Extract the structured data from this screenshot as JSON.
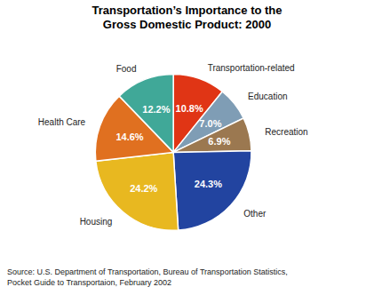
{
  "chart_data": {
    "type": "pie",
    "title": "Transportation’s Importance to the\nGross Domestic Product:  2000",
    "categories": [
      "Transportation-related",
      "Education",
      "Recreation",
      "Other",
      "Housing",
      "Health Care",
      "Food"
    ],
    "values": [
      10.8,
      7.0,
      6.9,
      24.3,
      24.2,
      14.6,
      12.2
    ],
    "value_labels": [
      "10.8%",
      "7.0%",
      "6.9%",
      "24.3%",
      "24.2%",
      "14.6%",
      "12.2%"
    ],
    "colors": [
      "#e03515",
      "#7f9db5",
      "#9b7850",
      "#2244a0",
      "#e8b820",
      "#e07020",
      "#40a898"
    ],
    "data_labels": true,
    "annotations": [
      "Source: U.S. Department of Transportation, Bureau of Transportation Statistics,",
      "Pocket Guide to Transportaion, February 2002"
    ]
  }
}
